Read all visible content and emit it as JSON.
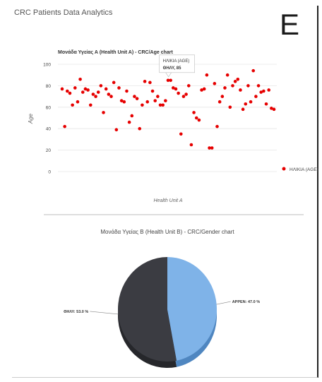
{
  "panel_title": "CRC Patients Data Analytics",
  "corner_letter": "E",
  "colors": {
    "scatter_point": "#e60000",
    "pie_female": "#3b3c42",
    "pie_male": "#7fb3e8",
    "pie_female_dark": "#26272b",
    "pie_male_dark": "#4f86c0",
    "grid": "#e6e6e6",
    "axis_text": "#444444"
  },
  "chart_data": [
    {
      "type": "scatter",
      "title": "Μονάδα Υγείας Α (Health Unit A) - CRC/Age chart",
      "xlabel": "Health Unit  A",
      "ylabel": "Age",
      "ylim": [
        0,
        100
      ],
      "yticks": [
        0,
        20,
        40,
        60,
        80,
        100
      ],
      "grid": true,
      "legend_position": "right",
      "series": [
        {
          "name": "ΗΛΙΚΙΑ (AGE)",
          "values": [
            77,
            42,
            75,
            73,
            62,
            78,
            65,
            86,
            74,
            77,
            76,
            62,
            72,
            70,
            74,
            80,
            55,
            77,
            72,
            70,
            83,
            39,
            78,
            66,
            65,
            75,
            46,
            52,
            70,
            68,
            40,
            62,
            84,
            65,
            83,
            75,
            66,
            70,
            62,
            62,
            66,
            85,
            85,
            78,
            77,
            73,
            35,
            70,
            72,
            80,
            25,
            55,
            50,
            48,
            76,
            77,
            90,
            22,
            22,
            82,
            42,
            65,
            70,
            78,
            90,
            60,
            80,
            84,
            86,
            76,
            58,
            63,
            80,
            65,
            94,
            70,
            80,
            74,
            75,
            63,
            76,
            59,
            58
          ]
        }
      ],
      "tooltip": {
        "title": "ΗΛΙΚΙΑ (AGE)",
        "label": "ΘΗΛΥ, 85",
        "point_index": 42
      }
    },
    {
      "type": "pie",
      "title": "Μονάδα Υγείας Β (Health Unit B) - CRC/Gender chart",
      "categories": [
        "ΘΗΛΥ",
        "ΑΡΡΕΝ"
      ],
      "values": [
        53.0,
        47.0
      ],
      "labels": [
        "ΘΗΛΥ: 53.0 %",
        "ΑΡΡΕΝ: 47.0 %"
      ]
    }
  ]
}
